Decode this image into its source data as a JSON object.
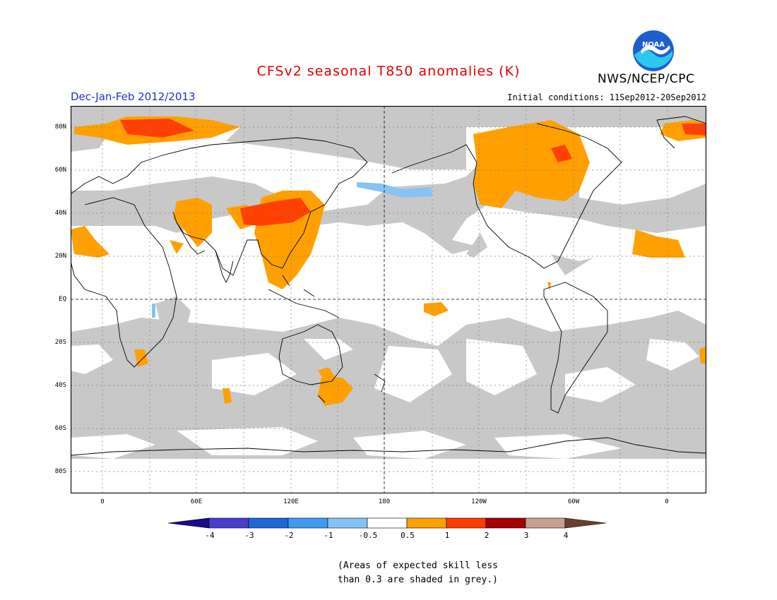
{
  "title": "CFSv2 seasonal T850 anomalies (K)",
  "credit": "NWS/NCEP/CPC",
  "logo_text": "NOAA",
  "season": "Dec-Jan-Feb 2012/2013",
  "initial_conditions": "Initial conditions: 11Sep2012-20Sep2012",
  "lat_labels": [
    "80N",
    "60N",
    "40N",
    "20N",
    "EQ",
    "20S",
    "40S",
    "60S",
    "80S"
  ],
  "lon_labels": [
    "0",
    "60E",
    "120E",
    "180",
    "120W",
    "60W",
    "0"
  ],
  "colorbar": {
    "labels": [
      "-4",
      "-3",
      "-2",
      "-1",
      "-0.5",
      "0.5",
      "1",
      "2",
      "3",
      "4"
    ],
    "colors": [
      "#1a0a8c",
      "#4a3ccc",
      "#1f66d6",
      "#3f9af0",
      "#86c2f5",
      "#ffffff",
      "#ffa000",
      "#ff3c00",
      "#a40000",
      "#c8a090",
      "#6b4030"
    ]
  },
  "note_line1": "(Areas of expected skill less",
  "note_line2": "than 0.3 are shaded in grey.)",
  "colors": {
    "grey": "#c8c8c8",
    "orange": "#ffa000",
    "red": "#ff4000",
    "blue": "#86c2f5"
  }
}
